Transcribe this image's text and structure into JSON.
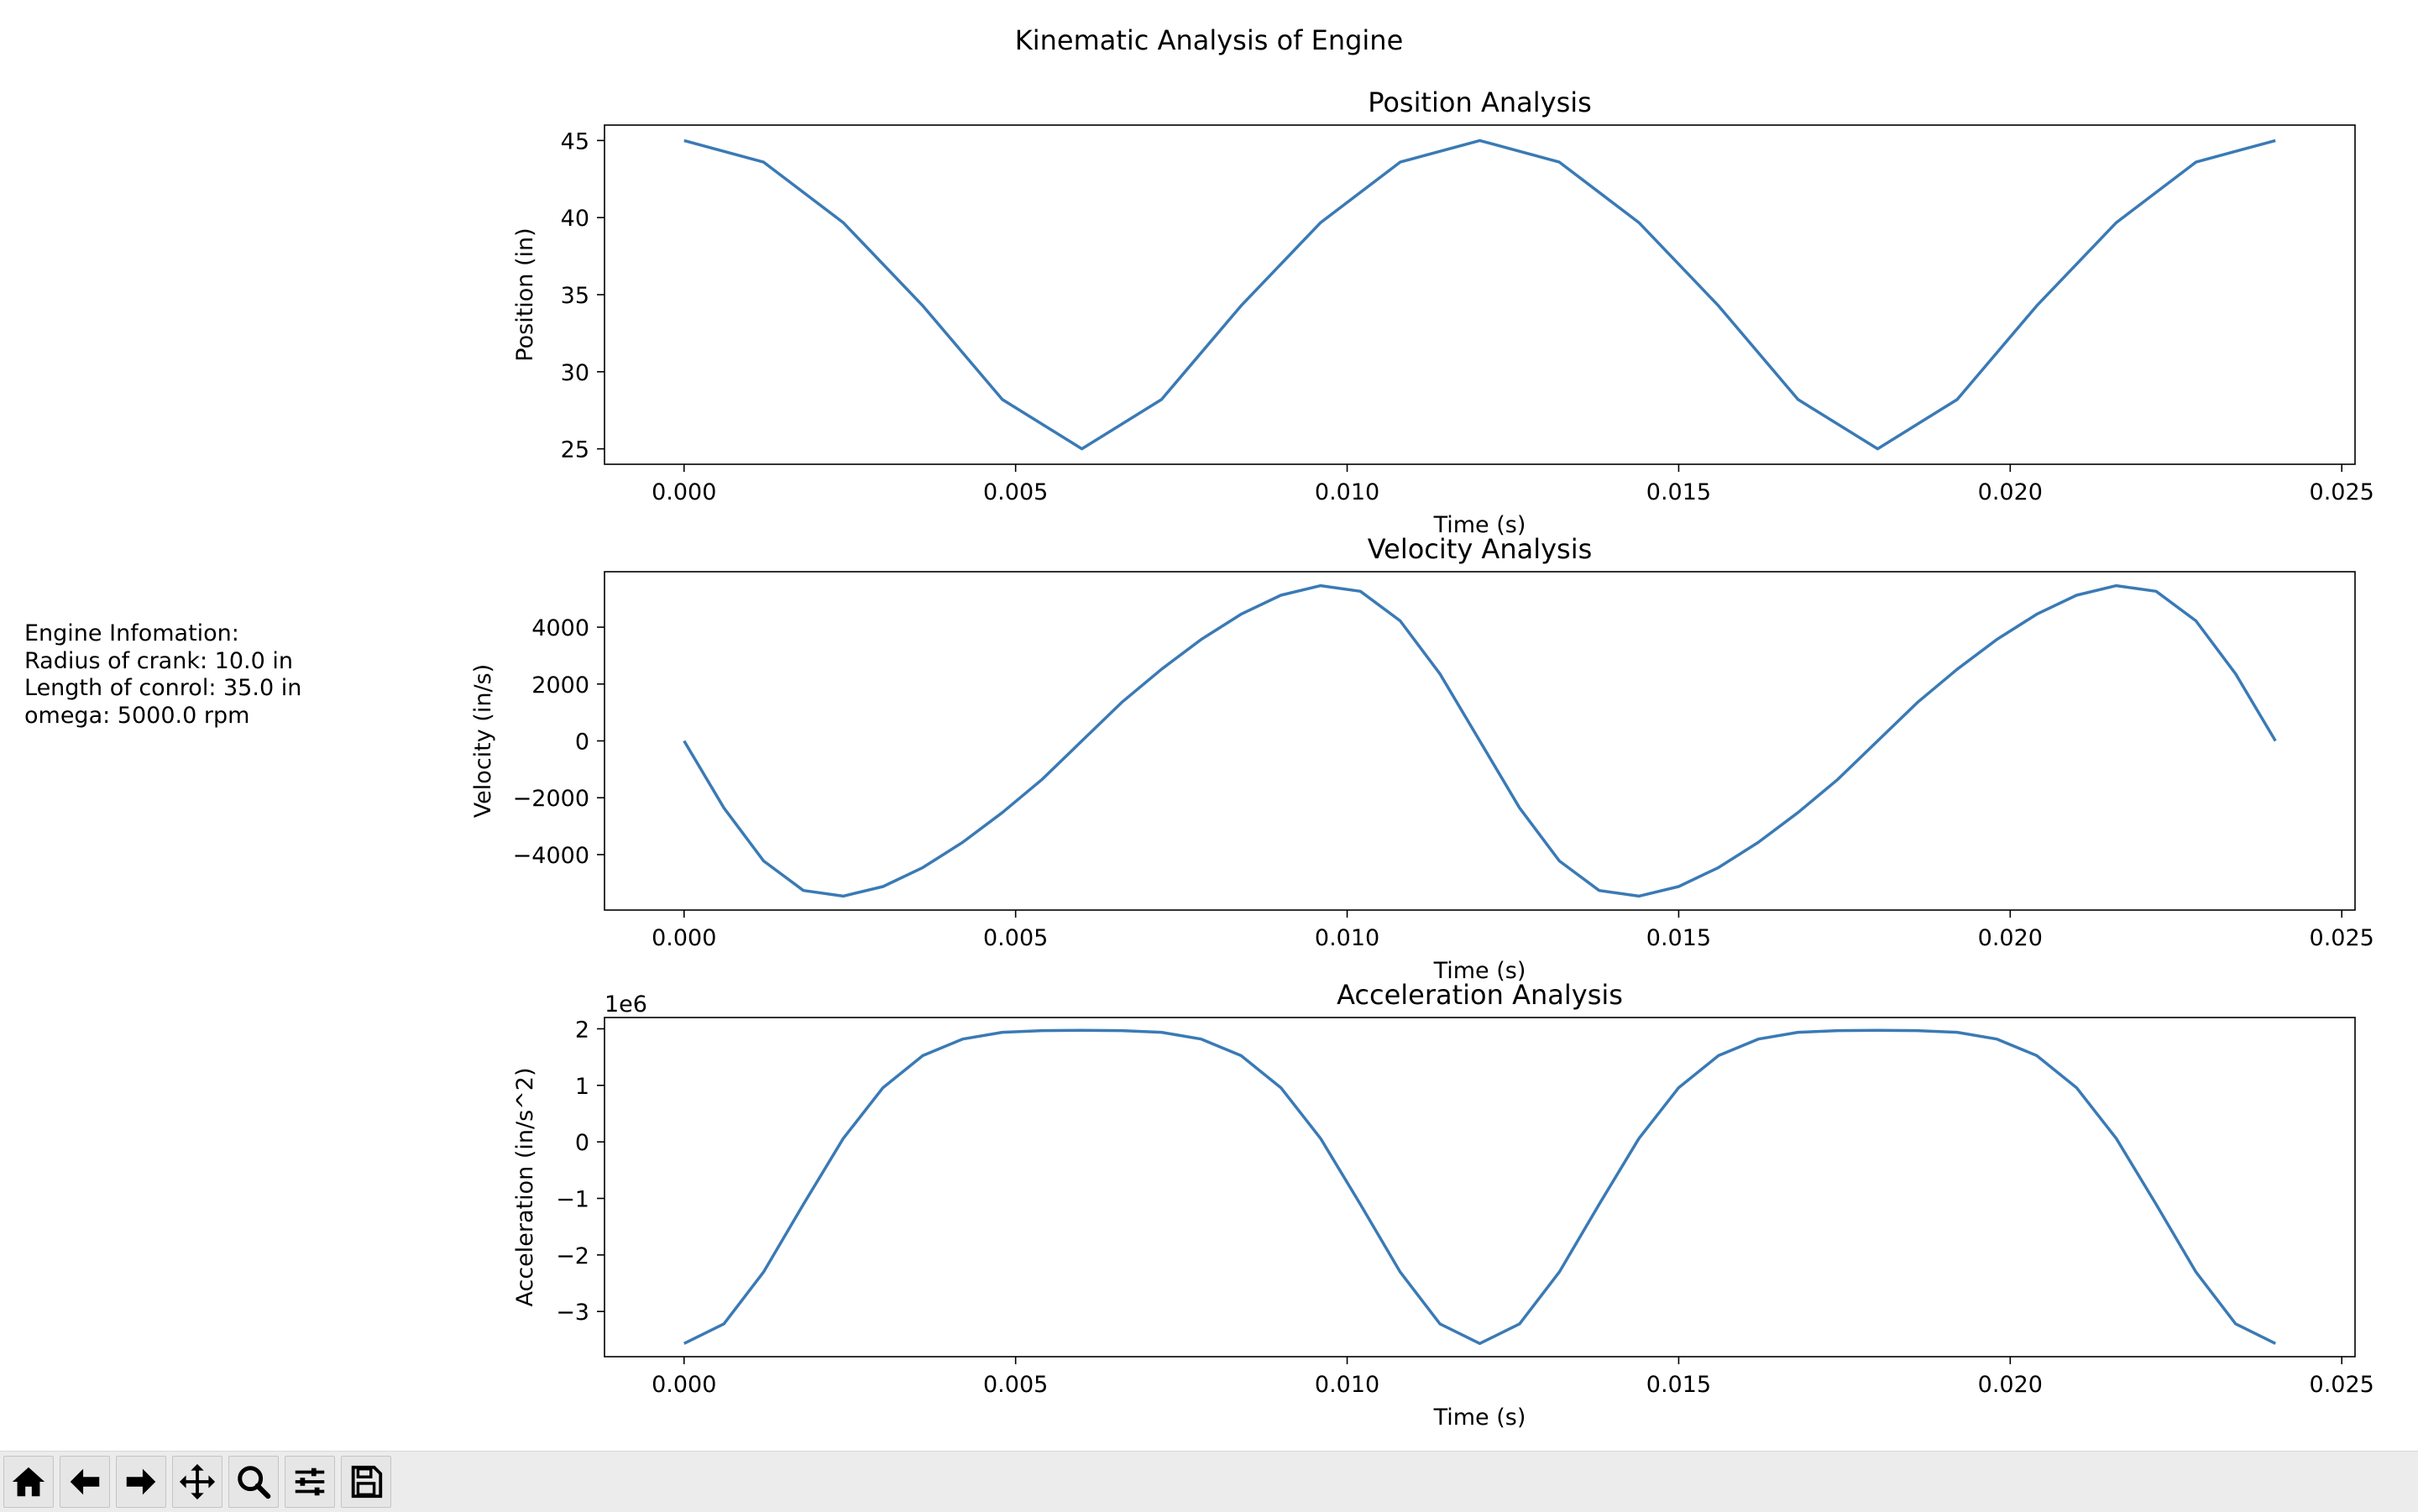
{
  "figure": {
    "suptitle": "Kinematic Analysis of Engine",
    "info_text": "Engine Infomation:\nRadius of crank: 10.0 in\nLength of conrol: 35.0 in\nomega: 5000.0 rpm"
  },
  "line_color": "#3a7ab5",
  "chart_data": [
    {
      "type": "line",
      "title": "Position Analysis",
      "xlabel": "Time (s)",
      "ylabel": "Position (in)",
      "xlim": [
        -0.0012,
        0.0252
      ],
      "ylim": [
        24.0,
        46.0
      ],
      "xticks": [
        0.0,
        0.005,
        0.01,
        0.015,
        0.02,
        0.025
      ],
      "xtick_labels": [
        "0.000",
        "0.005",
        "0.010",
        "0.015",
        "0.020",
        "0.025"
      ],
      "yticks": [
        25,
        30,
        35,
        40,
        45
      ],
      "ytick_labels": [
        "25",
        "30",
        "35",
        "40",
        "45"
      ],
      "offset_label": "",
      "series": [
        {
          "x": [
            0,
            0.0012,
            0.0024,
            0.0036,
            0.0048,
            0.006,
            0.0072,
            0.0084,
            0.0096,
            0.0108,
            0.012,
            0.0132,
            0.0144,
            0.0156,
            0.0168,
            0.018,
            0.0192,
            0.0204,
            0.0216,
            0.0228,
            0.024
          ],
          "y": [
            45.0,
            43.6,
            39.68,
            34.28,
            28.2,
            25.0,
            28.2,
            34.28,
            39.68,
            43.6,
            45.0,
            43.6,
            39.68,
            34.28,
            28.2,
            25.0,
            28.2,
            34.28,
            39.68,
            43.6,
            45.0
          ]
        }
      ]
    },
    {
      "type": "line",
      "title": "Velocity Analysis",
      "xlabel": "Time (s)",
      "ylabel": "Velocity (in/s)",
      "xlim": [
        -0.0012,
        0.0252
      ],
      "ylim": [
        -5950,
        5950
      ],
      "xticks": [
        0.0,
        0.005,
        0.01,
        0.015,
        0.02,
        0.025
      ],
      "xtick_labels": [
        "0.000",
        "0.005",
        "0.010",
        "0.015",
        "0.020",
        "0.025"
      ],
      "yticks": [
        -4000,
        -2000,
        0,
        2000,
        4000
      ],
      "ytick_labels": [
        "−4000",
        "−2000",
        "0",
        "2000",
        "4000"
      ],
      "offset_label": "",
      "series": [
        {
          "x": [
            0,
            0.0006,
            0.0012,
            0.0018,
            0.0024,
            0.003,
            0.0036,
            0.0042,
            0.0048,
            0.0054,
            0.006,
            0.0066,
            0.0072,
            0.0078,
            0.0084,
            0.009,
            0.0096,
            0.0102,
            0.0108,
            0.0114,
            0.012,
            0.0126,
            0.0132,
            0.0138,
            0.0144,
            0.015,
            0.0156,
            0.0162,
            0.0168,
            0.0174,
            0.018,
            0.0186,
            0.0192,
            0.0198,
            0.0204,
            0.021,
            0.0216,
            0.0222,
            0.0228,
            0.0234,
            0.024
          ],
          "y": [
            0,
            -2356,
            -4223,
            -5262,
            -5461,
            -5123,
            -4456,
            -3570,
            -2520,
            -1353,
            0,
            1353,
            2520,
            3570,
            4456,
            5123,
            5461,
            5262,
            4223,
            2356,
            0,
            -2356,
            -4223,
            -5262,
            -5461,
            -5123,
            -4456,
            -3570,
            -2520,
            -1353,
            0,
            1353,
            2520,
            3570,
            4456,
            5123,
            5461,
            5262,
            4223,
            2356,
            0
          ]
        }
      ]
    },
    {
      "type": "line",
      "title": "Acceleration Analysis",
      "xlabel": "Time (s)",
      "ylabel": "Acceleration (in/s^2)",
      "xlim": [
        -0.0012,
        0.0252
      ],
      "ylim": [
        -3.8,
        2.2
      ],
      "xticks": [
        0.0,
        0.005,
        0.01,
        0.015,
        0.02,
        0.025
      ],
      "xtick_labels": [
        "0.000",
        "0.005",
        "0.010",
        "0.015",
        "0.020",
        "0.025"
      ],
      "yticks": [
        -3,
        -2,
        -1,
        0,
        1,
        2
      ],
      "ytick_labels": [
        "−3",
        "−2",
        "−1",
        "0",
        "1",
        "2"
      ],
      "offset_label": "1e6",
      "series": [
        {
          "x": [
            0,
            0.0006,
            0.0012,
            0.0018,
            0.0024,
            0.003,
            0.0036,
            0.0042,
            0.0048,
            0.0054,
            0.006,
            0.0066,
            0.0072,
            0.0078,
            0.0084,
            0.009,
            0.0096,
            0.0102,
            0.0108,
            0.0114,
            0.012,
            0.0126,
            0.0132,
            0.0138,
            0.0144,
            0.015,
            0.0156,
            0.0162,
            0.0168,
            0.0174,
            0.018,
            0.0186,
            0.0192,
            0.0198,
            0.0204,
            0.021,
            0.0216,
            0.0222,
            0.0228,
            0.0234,
            0.024
          ],
          "y": [
            -3.567,
            -3.22,
            -2.302,
            -1.104,
            0.059,
            0.958,
            1.526,
            1.819,
            1.938,
            1.969,
            1.974,
            1.969,
            1.938,
            1.819,
            1.526,
            0.958,
            0.059,
            -1.104,
            -2.302,
            -3.22,
            -3.567,
            -3.22,
            -2.302,
            -1.104,
            0.059,
            0.958,
            1.526,
            1.819,
            1.938,
            1.969,
            1.974,
            1.969,
            1.938,
            1.819,
            1.526,
            0.958,
            0.059,
            -1.104,
            -2.302,
            -3.22,
            -3.567
          ]
        }
      ]
    }
  ],
  "toolbar": {
    "buttons": [
      {
        "icon": "home-icon"
      },
      {
        "icon": "back-arrow-icon"
      },
      {
        "icon": "forward-arrow-icon"
      },
      {
        "icon": "pan-icon"
      },
      {
        "icon": "zoom-icon"
      },
      {
        "icon": "configure-subplots-icon"
      },
      {
        "icon": "save-icon"
      }
    ]
  }
}
